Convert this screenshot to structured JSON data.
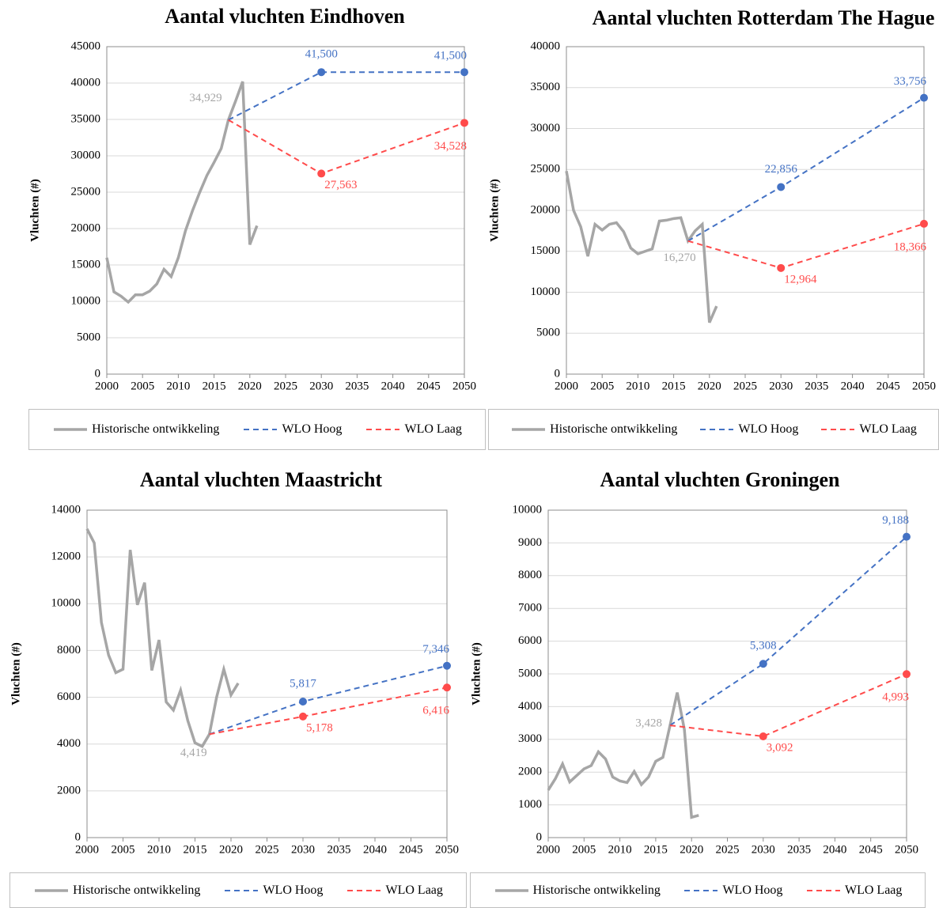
{
  "chart_data": [
    {
      "type": "line",
      "title": "Aantal vluchten Eindhoven",
      "ylabel": "Vluchten (#)",
      "xlim": [
        2000,
        2050
      ],
      "xticks": [
        2000,
        2005,
        2010,
        2015,
        2020,
        2025,
        2030,
        2035,
        2040,
        2045,
        2050
      ],
      "ylim": [
        0,
        45000
      ],
      "yticks": [
        0,
        5000,
        10000,
        15000,
        20000,
        25000,
        30000,
        35000,
        40000,
        45000
      ],
      "grid": true,
      "series": [
        {
          "name": "Historische ontwikkeling",
          "color": "#a6a6a6",
          "dashed": false,
          "x": [
            2000,
            2001,
            2002,
            2003,
            2004,
            2005,
            2006,
            2007,
            2008,
            2009,
            2010,
            2011,
            2012,
            2013,
            2014,
            2015,
            2016,
            2017,
            2018,
            2019,
            2020,
            2021
          ],
          "values": [
            16000,
            11300,
            10700,
            9900,
            10900,
            10900,
            11400,
            12400,
            14400,
            13400,
            16000,
            19700,
            22500,
            25000,
            27300,
            29100,
            31000,
            34929,
            37500,
            40200,
            17800,
            20400
          ],
          "value_labels": [
            null,
            null,
            null,
            null,
            null,
            null,
            null,
            null,
            null,
            null,
            null,
            null,
            null,
            null,
            null,
            null,
            null,
            "34,929",
            null,
            null,
            null,
            null
          ]
        },
        {
          "name": "WLO Hoog",
          "color": "#4472c4",
          "dashed": true,
          "x": [
            2017,
            2030,
            2050
          ],
          "values": [
            34929,
            41500,
            41500
          ],
          "value_labels": [
            null,
            "41,500",
            "41,500"
          ]
        },
        {
          "name": "WLO Laag",
          "color": "#ff4b4b",
          "dashed": true,
          "x": [
            2017,
            2030,
            2050
          ],
          "values": [
            34929,
            27563,
            34528
          ],
          "value_labels": [
            null,
            "27,563",
            "34,528"
          ]
        }
      ]
    },
    {
      "type": "line",
      "title": "Aantal vluchten Rotterdam The Hague",
      "ylabel": "Vluchten (#)",
      "xlim": [
        2000,
        2050
      ],
      "xticks": [
        2000,
        2005,
        2010,
        2015,
        2020,
        2025,
        2030,
        2035,
        2040,
        2045,
        2050
      ],
      "ylim": [
        0,
        40000
      ],
      "yticks": [
        0,
        5000,
        10000,
        15000,
        20000,
        25000,
        30000,
        35000,
        40000
      ],
      "grid": true,
      "series": [
        {
          "name": "Historische ontwikkeling",
          "color": "#a6a6a6",
          "dashed": false,
          "x": [
            2000,
            2001,
            2002,
            2003,
            2004,
            2005,
            2006,
            2007,
            2008,
            2009,
            2010,
            2011,
            2012,
            2013,
            2014,
            2015,
            2016,
            2017,
            2018,
            2019,
            2020,
            2021
          ],
          "values": [
            24800,
            20000,
            18000,
            14400,
            18300,
            17600,
            18300,
            18500,
            17400,
            15400,
            14700,
            15000,
            15300,
            18700,
            18800,
            19000,
            19100,
            16270,
            17500,
            18300,
            6300,
            8300
          ],
          "value_labels": [
            null,
            null,
            null,
            null,
            null,
            null,
            null,
            null,
            null,
            null,
            null,
            null,
            null,
            null,
            null,
            null,
            null,
            "16,270",
            null,
            null,
            null,
            null
          ]
        },
        {
          "name": "WLO Hoog",
          "color": "#4472c4",
          "dashed": true,
          "x": [
            2017,
            2030,
            2050
          ],
          "values": [
            16270,
            22856,
            33756
          ],
          "value_labels": [
            null,
            "22,856",
            "33,756"
          ]
        },
        {
          "name": "WLO Laag",
          "color": "#ff4b4b",
          "dashed": true,
          "x": [
            2017,
            2030,
            2050
          ],
          "values": [
            16270,
            12964,
            18366
          ],
          "value_labels": [
            null,
            "12,964",
            "18,366"
          ]
        }
      ]
    },
    {
      "type": "line",
      "title": "Aantal vluchten Maastricht",
      "ylabel": "Vluchten (#)",
      "xlim": [
        2000,
        2050
      ],
      "xticks": [
        2000,
        2005,
        2010,
        2015,
        2020,
        2025,
        2030,
        2035,
        2040,
        2045,
        2050
      ],
      "ylim": [
        0,
        14000
      ],
      "yticks": [
        0,
        2000,
        4000,
        6000,
        8000,
        10000,
        12000,
        14000
      ],
      "grid": true,
      "series": [
        {
          "name": "Historische ontwikkeling",
          "color": "#a6a6a6",
          "dashed": false,
          "x": [
            2000,
            2001,
            2002,
            2003,
            2004,
            2005,
            2006,
            2007,
            2008,
            2009,
            2010,
            2011,
            2012,
            2013,
            2014,
            2015,
            2016,
            2017,
            2018,
            2019,
            2020,
            2021
          ],
          "values": [
            13200,
            12600,
            9200,
            7800,
            7050,
            7200,
            12300,
            9950,
            10900,
            7150,
            8450,
            5800,
            5450,
            6300,
            5000,
            4050,
            3900,
            4419,
            6000,
            7200,
            6100,
            6600
          ],
          "value_labels": [
            null,
            null,
            null,
            null,
            null,
            null,
            null,
            null,
            null,
            null,
            null,
            null,
            null,
            null,
            null,
            null,
            null,
            "4,419",
            null,
            null,
            null,
            null
          ]
        },
        {
          "name": "WLO Hoog",
          "color": "#4472c4",
          "dashed": true,
          "x": [
            2017,
            2030,
            2050
          ],
          "values": [
            4419,
            5817,
            7346
          ],
          "value_labels": [
            null,
            "5,817",
            "7,346"
          ]
        },
        {
          "name": "WLO Laag",
          "color": "#ff4b4b",
          "dashed": true,
          "x": [
            2017,
            2030,
            2050
          ],
          "values": [
            4419,
            5178,
            6416
          ],
          "value_labels": [
            null,
            "5,178",
            "6,416"
          ]
        }
      ]
    },
    {
      "type": "line",
      "title": "Aantal vluchten Groningen",
      "ylabel": "Vluchten (#)",
      "xlim": [
        2000,
        2050
      ],
      "xticks": [
        2000,
        2005,
        2010,
        2015,
        2020,
        2025,
        2030,
        2035,
        2040,
        2045,
        2050
      ],
      "ylim": [
        0,
        10000
      ],
      "yticks": [
        0,
        1000,
        2000,
        3000,
        4000,
        5000,
        6000,
        7000,
        8000,
        9000,
        10000
      ],
      "grid": true,
      "series": [
        {
          "name": "Historische ontwikkeling",
          "color": "#a6a6a6",
          "dashed": false,
          "x": [
            2000,
            2001,
            2002,
            2003,
            2004,
            2005,
            2006,
            2007,
            2008,
            2009,
            2010,
            2011,
            2012,
            2013,
            2014,
            2015,
            2016,
            2017,
            2018,
            2019,
            2020,
            2021
          ],
          "values": [
            1450,
            1800,
            2250,
            1700,
            1900,
            2100,
            2200,
            2620,
            2400,
            1850,
            1730,
            1680,
            2020,
            1620,
            1850,
            2330,
            2450,
            3428,
            4430,
            3300,
            620,
            680
          ],
          "value_labels": [
            null,
            null,
            null,
            null,
            null,
            null,
            null,
            null,
            null,
            null,
            null,
            null,
            null,
            null,
            null,
            null,
            null,
            "3,428",
            null,
            null,
            null,
            null
          ]
        },
        {
          "name": "WLO Hoog",
          "color": "#4472c4",
          "dashed": true,
          "x": [
            2017,
            2030,
            2050
          ],
          "values": [
            3428,
            5308,
            9188
          ],
          "value_labels": [
            null,
            "5,308",
            "9,188"
          ]
        },
        {
          "name": "WLO Laag",
          "color": "#ff4b4b",
          "dashed": true,
          "x": [
            2017,
            2030,
            2050
          ],
          "values": [
            3428,
            3092,
            4993
          ],
          "value_labels": [
            null,
            "3,092",
            "4,993"
          ]
        }
      ]
    }
  ]
}
